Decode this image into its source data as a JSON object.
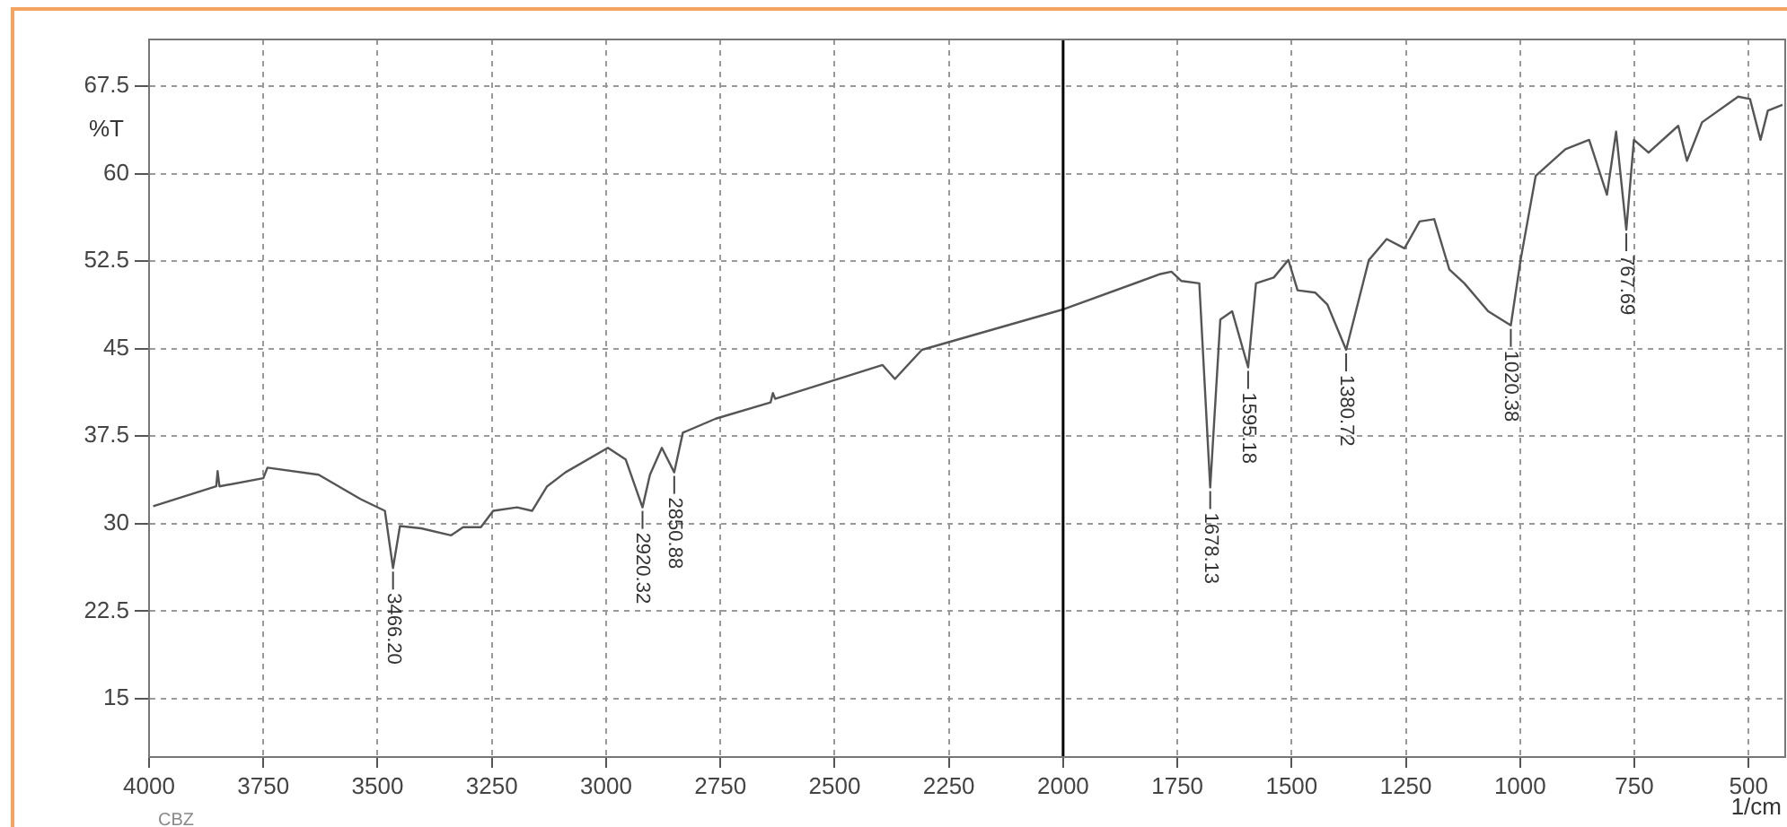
{
  "chart_data": {
    "type": "line",
    "xlabel": "1/cm",
    "ylabel": "%T",
    "annotations": [
      "CBZ",
      {
        "text": "3466.20",
        "x": 3466.2,
        "y": 26.2
      },
      {
        "text": "2920.32",
        "x": 2920.32,
        "y": 31.4
      },
      {
        "text": "2850.88",
        "x": 2850.88,
        "y": 34.4
      },
      {
        "text": "1678.13",
        "x": 1678.13,
        "y": 33.1
      },
      {
        "text": "1595.18",
        "x": 1595.18,
        "y": 43.4
      },
      {
        "text": "1380.72",
        "x": 1380.72,
        "y": 44.9
      },
      {
        "text": "1020.38",
        "x": 1020.38,
        "y": 47.0
      },
      {
        "text": "767.69",
        "x": 767.69,
        "y": 55.2
      }
    ],
    "series": [
      {
        "color": "#555555",
        "x": [
          3991,
          3853,
          3850,
          3846,
          3750,
          3741,
          3629,
          3537,
          3484,
          3466.2,
          3451,
          3405,
          3339,
          3313,
          3274,
          3247,
          3195,
          3162,
          3129,
          3089,
          2996,
          2957,
          2920.32,
          2904,
          2878,
          2850.88,
          2832,
          2760,
          2640,
          2635,
          2630,
          2395,
          2368,
          2309,
          1997,
          1787,
          1763,
          1741,
          1702,
          1678.13,
          1656,
          1630,
          1595.18,
          1578,
          1539,
          1507,
          1487,
          1448,
          1422,
          1380.72,
          1331,
          1292,
          1253,
          1220,
          1188,
          1155,
          1122,
          1070,
          1020.38,
          999,
          966,
          901,
          849,
          810,
          790,
          767.69,
          751,
          719,
          654,
          635,
          602,
          523,
          497,
          474,
          458,
          426
        ],
        "values": [
          31.5,
          33.2,
          34.5,
          33.2,
          33.9,
          34.8,
          34.2,
          32.1,
          31.1,
          26.2,
          29.8,
          29.6,
          29.0,
          29.7,
          29.7,
          31.1,
          31.4,
          31.1,
          33.2,
          34.4,
          36.5,
          35.5,
          31.4,
          34.2,
          36.5,
          34.4,
          37.8,
          39.0,
          40.4,
          41.2,
          40.7,
          43.6,
          42.4,
          44.9,
          48.4,
          51.4,
          51.6,
          50.8,
          50.6,
          33.1,
          47.5,
          48.2,
          43.4,
          50.6,
          51.1,
          52.6,
          50.0,
          49.8,
          48.8,
          44.9,
          52.6,
          54.4,
          53.6,
          55.9,
          56.1,
          51.8,
          50.6,
          48.2,
          47.0,
          52.6,
          59.8,
          62.1,
          62.9,
          58.2,
          63.6,
          55.2,
          62.9,
          61.8,
          64.1,
          61.1,
          64.4,
          66.6,
          66.4,
          62.9,
          65.4,
          65.9
        ]
      }
    ],
    "xlim": [
      4000,
      420
    ],
    "xticks": [
      4000,
      3750,
      3500,
      3250,
      3000,
      2750,
      2500,
      2250,
      2000,
      1750,
      1500,
      1250,
      1000,
      750,
      500
    ],
    "ylim": [
      10,
      71.5
    ],
    "yticks": [
      15,
      22.5,
      30,
      37.5,
      45,
      52.5,
      60,
      67.5
    ],
    "grid": true,
    "legend": false,
    "marker": "none",
    "line_style": "solid",
    "ref_lines": [
      {
        "axis": "x",
        "value": 2000,
        "color": "#000000"
      }
    ]
  }
}
